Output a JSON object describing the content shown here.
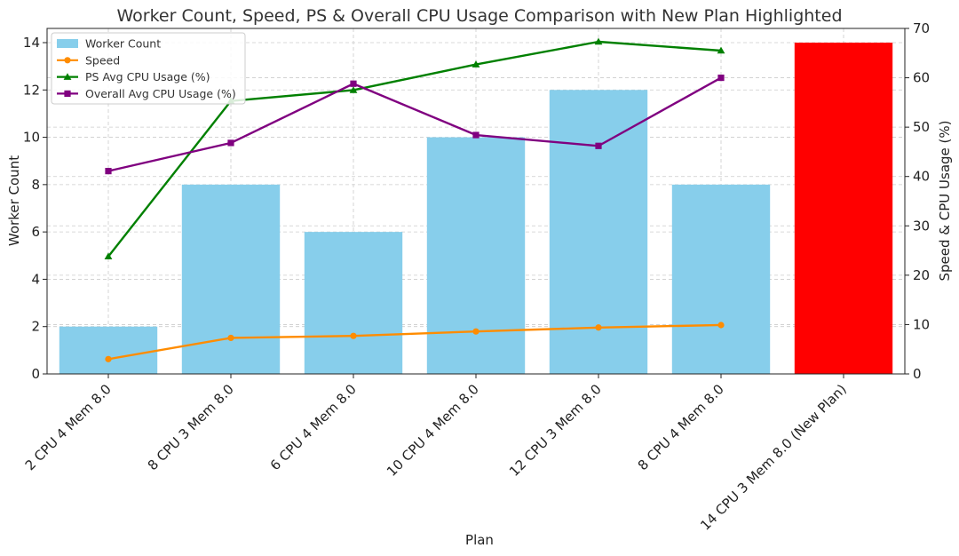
{
  "chart_data": {
    "type": "bar",
    "title": "Worker Count, Speed, PS & Overall CPU Usage Comparison with New Plan Highlighted",
    "xlabel": "Plan",
    "ylabel": "Worker Count",
    "y2label": "Speed & CPU Usage (%)",
    "categories": [
      "2 CPU 4 Mem 8.0",
      "8 CPU 3 Mem 8.0",
      "6 CPU 4 Mem 8.0",
      "10 CPU 4 Mem 8.0",
      "12 CPU 3 Mem 8.0",
      "8 CPU 4 Mem 8.0",
      "14 CPU 3 Mem 8.0 (New Plan)"
    ],
    "ylim": [
      0,
      14.6
    ],
    "y2lim": [
      0,
      70
    ],
    "yticks": [
      0,
      2,
      4,
      6,
      8,
      10,
      12,
      14
    ],
    "y2ticks": [
      0,
      10,
      20,
      30,
      40,
      50,
      60,
      70
    ],
    "grid": true,
    "legend_position": "top-left",
    "bar_series": {
      "name": "Worker Count",
      "values": [
        2,
        8,
        6,
        10,
        12,
        8,
        14
      ],
      "color": "#87ceeb",
      "highlight_index": 6,
      "highlight_color": "#ff0000"
    },
    "line_series": [
      {
        "name": "Speed",
        "values": [
          3.0,
          7.3,
          7.7,
          8.6,
          9.4,
          9.9
        ],
        "color": "#ff8c00",
        "marker": "circle"
      },
      {
        "name": "PS Avg CPU Usage (%)",
        "values": [
          23.8,
          55.3,
          57.5,
          62.7,
          67.3,
          65.5
        ],
        "color": "#008000",
        "marker": "triangle"
      },
      {
        "name": "Overall Avg CPU Usage (%)",
        "values": [
          41.1,
          46.8,
          58.8,
          48.4,
          46.2,
          60.0
        ],
        "color": "#800080",
        "marker": "square"
      }
    ]
  }
}
